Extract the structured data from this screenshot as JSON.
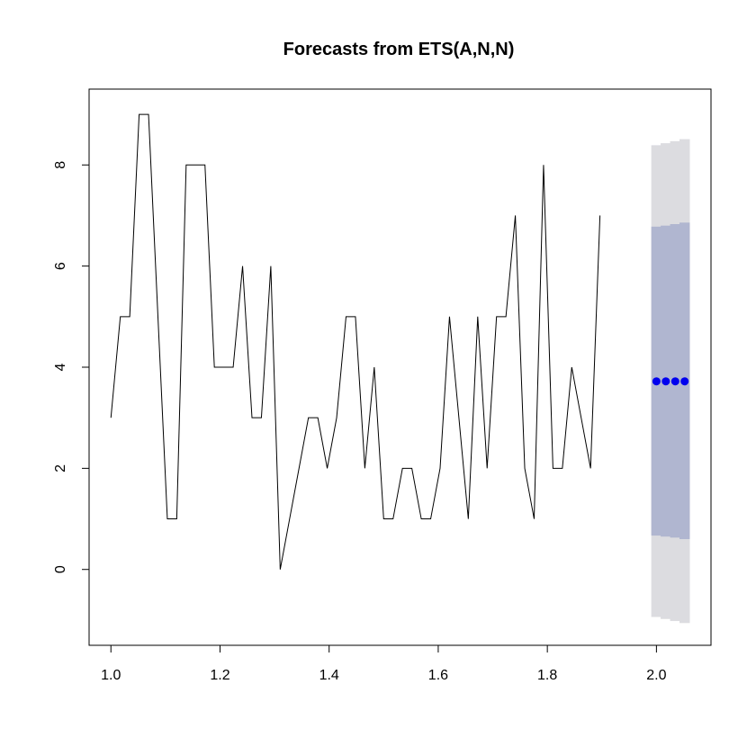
{
  "chart_data": {
    "type": "line",
    "title": "Forecasts from ETS(A,N,N)",
    "xlabel": "",
    "ylabel": "",
    "xlim": [
      0.96,
      2.1
    ],
    "ylim": [
      -1.5,
      9.5
    ],
    "x_ticks": [
      1.0,
      1.2,
      1.4,
      1.6,
      1.8,
      2.0
    ],
    "x_tick_labels": [
      "1.0",
      "1.2",
      "1.4",
      "1.6",
      "1.8",
      "2.0"
    ],
    "y_ticks": [
      0,
      2,
      4,
      6,
      8
    ],
    "y_tick_labels": [
      "0",
      "2",
      "4",
      "6",
      "8"
    ],
    "grid": false,
    "series": [
      {
        "x_start": 1.0,
        "x_step": 0.01724,
        "values": [
          3,
          5,
          5,
          9,
          9,
          5,
          1,
          1,
          8,
          8,
          8,
          4,
          4,
          4,
          6,
          3,
          3,
          6,
          0,
          1,
          2,
          3,
          3,
          2,
          3,
          5,
          5,
          2,
          4,
          1,
          1,
          2,
          2,
          1,
          1,
          2,
          5,
          3,
          1,
          5,
          2,
          5,
          5,
          7,
          2,
          1,
          8,
          2,
          2,
          4,
          3,
          2,
          7
        ],
        "color": "#000000"
      }
    ],
    "forecast": {
      "x": [
        2.0,
        2.0172,
        2.0345,
        2.0517
      ],
      "point": [
        3.72,
        3.72,
        3.72,
        3.72
      ],
      "lo80": [
        0.67,
        0.65,
        0.63,
        0.6
      ],
      "hi80": [
        6.78,
        6.8,
        6.83,
        6.86
      ],
      "lo95": [
        -0.94,
        -0.98,
        -1.02,
        -1.06
      ],
      "hi95": [
        8.39,
        8.43,
        8.47,
        8.51
      ],
      "point_color": "#0000ee",
      "band80_color": "#b0b6d0",
      "band95_color": "#dcdce0"
    }
  }
}
